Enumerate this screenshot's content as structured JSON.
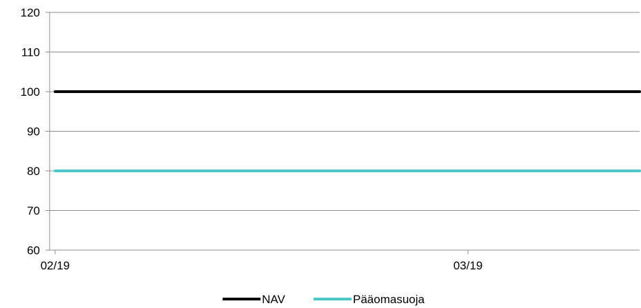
{
  "chart_data": {
    "type": "line",
    "x": [
      "02/19",
      "03/19"
    ],
    "ylim": [
      60,
      120
    ],
    "yticks": [
      60,
      70,
      80,
      90,
      100,
      110,
      120
    ],
    "grid": true,
    "legend_position": "bottom",
    "series": [
      {
        "name": "NAV",
        "color": "#000000",
        "values": [
          100,
          100
        ]
      },
      {
        "name": "Pääomasuoja",
        "color": "#4dc8c8",
        "values": [
          80,
          80
        ]
      }
    ]
  }
}
